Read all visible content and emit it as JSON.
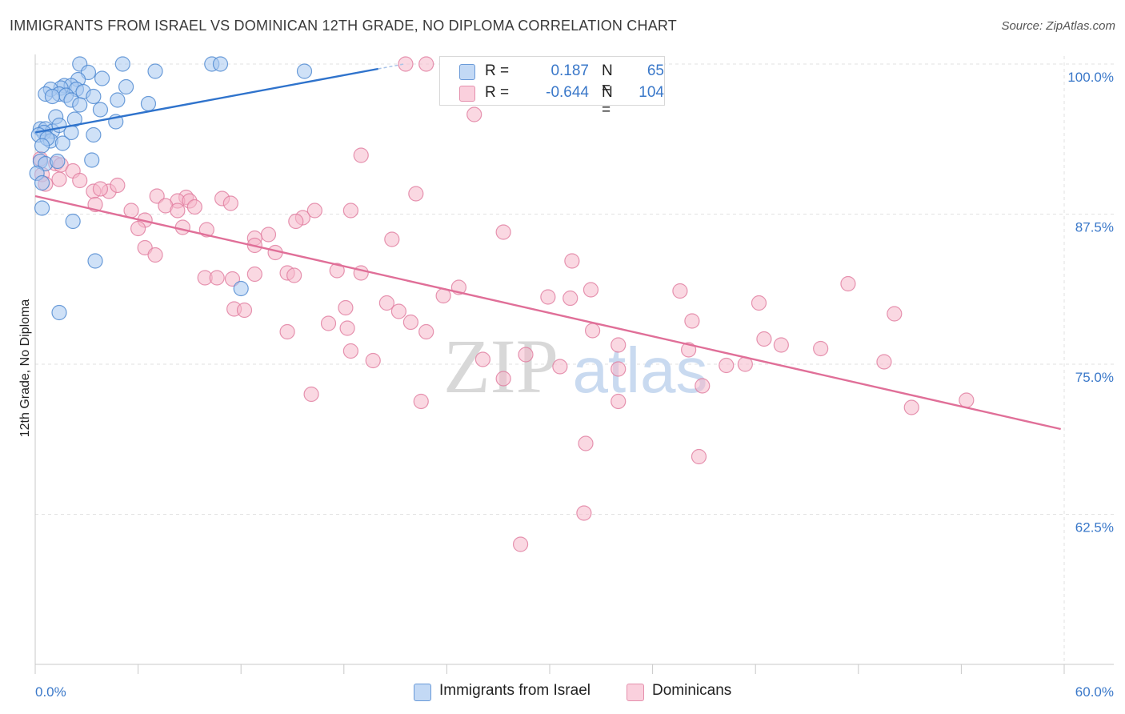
{
  "title": "IMMIGRANTS FROM ISRAEL VS DOMINICAN 12TH GRADE, NO DIPLOMA CORRELATION CHART",
  "source": "Source: ZipAtlas.com",
  "watermark": {
    "zip": "ZIP",
    "atlas": "atlas"
  },
  "legend": {
    "rows": [
      {
        "r_label": "R =",
        "r_value": "0.187",
        "n_label": "N =",
        "n_value": "65",
        "color": "#a8c8f0"
      },
      {
        "r_label": "R =",
        "r_value": "-0.644",
        "n_label": "N =",
        "n_value": "104",
        "color": "#f6b8cb"
      }
    ]
  },
  "bottom_legend": [
    {
      "label": "Immigrants from Israel",
      "color": "#a8c8f0"
    },
    {
      "label": "Dominicans",
      "color": "#f6b8cb"
    }
  ],
  "chart_data": {
    "type": "scatter",
    "title": "IMMIGRANTS FROM ISRAEL VS DOMINICAN 12TH GRADE, NO DIPLOMA CORRELATION CHART",
    "xlabel": "",
    "ylabel": "12th Grade, No Diploma",
    "xlim": [
      0,
      60
    ],
    "ylim": [
      50,
      100
    ],
    "x_tick_labels": [
      "0.0%",
      "60.0%"
    ],
    "y_ticks": [
      62.5,
      75.0,
      87.5,
      100.0
    ],
    "y_tick_labels": [
      "62.5%",
      "75.0%",
      "87.5%",
      "100.0%"
    ],
    "grid": true,
    "legend_position": "top-center",
    "colors": {
      "israel_fill": "#a8c8f0",
      "israel_stroke": "#4a86d0",
      "israel_line": "#2f73cc",
      "dominican_fill": "#f6b8cb",
      "dominican_stroke": "#e07a9e",
      "dominican_line": "#e06f98",
      "tick_text": "#3a78c9",
      "grid": "#e2e2e2"
    },
    "series": [
      {
        "name": "Immigrants from Israel",
        "trend": {
          "x": [
            0.0,
            20.0
          ],
          "y": [
            94.3,
            99.6
          ]
        },
        "points": [
          [
            2.6,
            100.0
          ],
          [
            5.1,
            100.0
          ],
          [
            10.3,
            100.0
          ],
          [
            10.8,
            100.0
          ],
          [
            3.1,
            99.3
          ],
          [
            7.0,
            99.4
          ],
          [
            15.7,
            99.4
          ],
          [
            2.5,
            98.7
          ],
          [
            3.9,
            98.8
          ],
          [
            1.7,
            98.2
          ],
          [
            2.1,
            98.2
          ],
          [
            1.5,
            98.0
          ],
          [
            2.4,
            97.9
          ],
          [
            2.8,
            97.7
          ],
          [
            0.9,
            97.9
          ],
          [
            0.6,
            97.5
          ],
          [
            1.4,
            97.5
          ],
          [
            1.8,
            97.4
          ],
          [
            1.0,
            97.3
          ],
          [
            3.4,
            97.3
          ],
          [
            4.8,
            97.0
          ],
          [
            5.3,
            98.1
          ],
          [
            2.1,
            97.0
          ],
          [
            2.6,
            96.6
          ],
          [
            6.6,
            96.7
          ],
          [
            3.8,
            96.2
          ],
          [
            1.2,
            95.6
          ],
          [
            2.3,
            95.4
          ],
          [
            4.7,
            95.2
          ],
          [
            0.3,
            94.6
          ],
          [
            0.6,
            94.6
          ],
          [
            1.0,
            94.4
          ],
          [
            1.4,
            94.9
          ],
          [
            0.5,
            94.3
          ],
          [
            0.9,
            93.6
          ],
          [
            2.1,
            94.3
          ],
          [
            0.2,
            94.1
          ],
          [
            3.4,
            94.1
          ],
          [
            0.7,
            93.8
          ],
          [
            1.6,
            93.4
          ],
          [
            0.4,
            93.2
          ],
          [
            0.3,
            91.9
          ],
          [
            0.6,
            91.7
          ],
          [
            1.3,
            91.9
          ],
          [
            3.3,
            92.0
          ],
          [
            0.1,
            90.9
          ],
          [
            0.4,
            90.1
          ],
          [
            0.4,
            88.0
          ],
          [
            2.2,
            86.9
          ],
          [
            3.5,
            83.6
          ],
          [
            12.0,
            81.3
          ],
          [
            1.4,
            79.3
          ]
        ]
      },
      {
        "name": "Dominicans",
        "trend": {
          "x": [
            0.0,
            59.8
          ],
          "y": [
            89.0,
            69.6
          ]
        },
        "points": [
          [
            21.6,
            100.0
          ],
          [
            22.8,
            100.0
          ],
          [
            25.6,
            95.8
          ],
          [
            19.0,
            92.4
          ],
          [
            0.3,
            92.1
          ],
          [
            1.2,
            91.7
          ],
          [
            1.5,
            91.6
          ],
          [
            2.2,
            91.1
          ],
          [
            0.4,
            90.8
          ],
          [
            1.4,
            90.4
          ],
          [
            2.6,
            90.3
          ],
          [
            0.6,
            90.0
          ],
          [
            3.4,
            89.4
          ],
          [
            4.3,
            89.4
          ],
          [
            4.8,
            89.9
          ],
          [
            3.8,
            89.6
          ],
          [
            22.2,
            89.2
          ],
          [
            7.1,
            89.0
          ],
          [
            8.8,
            88.9
          ],
          [
            10.9,
            88.8
          ],
          [
            11.4,
            88.4
          ],
          [
            8.3,
            88.6
          ],
          [
            9.0,
            88.6
          ],
          [
            7.6,
            88.2
          ],
          [
            5.6,
            87.8
          ],
          [
            9.3,
            88.1
          ],
          [
            3.5,
            88.3
          ],
          [
            8.3,
            87.8
          ],
          [
            16.3,
            87.8
          ],
          [
            18.4,
            87.8
          ],
          [
            15.6,
            87.2
          ],
          [
            6.4,
            87.0
          ],
          [
            15.2,
            86.9
          ],
          [
            6.0,
            86.3
          ],
          [
            8.6,
            86.4
          ],
          [
            10.0,
            86.2
          ],
          [
            13.6,
            85.8
          ],
          [
            12.8,
            85.5
          ],
          [
            20.8,
            85.4
          ],
          [
            12.8,
            84.9
          ],
          [
            27.3,
            86.0
          ],
          [
            6.4,
            84.7
          ],
          [
            14.0,
            84.3
          ],
          [
            7.0,
            84.1
          ],
          [
            31.3,
            83.6
          ],
          [
            17.6,
            82.8
          ],
          [
            19.0,
            82.6
          ],
          [
            12.8,
            82.5
          ],
          [
            14.7,
            82.6
          ],
          [
            15.1,
            82.4
          ],
          [
            9.9,
            82.2
          ],
          [
            10.6,
            82.2
          ],
          [
            11.5,
            82.1
          ],
          [
            24.7,
            81.4
          ],
          [
            23.8,
            80.7
          ],
          [
            29.9,
            80.6
          ],
          [
            31.2,
            80.5
          ],
          [
            32.4,
            81.2
          ],
          [
            37.6,
            81.1
          ],
          [
            47.4,
            81.7
          ],
          [
            50.1,
            79.2
          ],
          [
            42.2,
            80.1
          ],
          [
            38.3,
            78.6
          ],
          [
            11.6,
            79.6
          ],
          [
            12.2,
            79.5
          ],
          [
            20.5,
            80.1
          ],
          [
            18.1,
            79.7
          ],
          [
            21.2,
            79.4
          ],
          [
            21.9,
            78.5
          ],
          [
            17.1,
            78.4
          ],
          [
            18.2,
            78.0
          ],
          [
            14.7,
            77.7
          ],
          [
            22.8,
            77.7
          ],
          [
            32.5,
            77.8
          ],
          [
            34.0,
            76.6
          ],
          [
            38.1,
            76.2
          ],
          [
            42.5,
            77.1
          ],
          [
            43.5,
            76.6
          ],
          [
            45.8,
            76.3
          ],
          [
            18.4,
            76.1
          ],
          [
            19.7,
            75.3
          ],
          [
            26.1,
            75.4
          ],
          [
            28.6,
            75.8
          ],
          [
            30.6,
            74.8
          ],
          [
            34.0,
            74.6
          ],
          [
            40.3,
            74.9
          ],
          [
            41.4,
            75.0
          ],
          [
            49.5,
            75.2
          ],
          [
            16.1,
            72.5
          ],
          [
            22.5,
            71.9
          ],
          [
            27.3,
            73.8
          ],
          [
            34.0,
            71.9
          ],
          [
            38.9,
            73.2
          ],
          [
            54.3,
            72.0
          ],
          [
            51.1,
            71.4
          ],
          [
            32.1,
            68.4
          ],
          [
            38.7,
            67.3
          ],
          [
            32.0,
            62.6
          ],
          [
            28.3,
            60.0
          ]
        ]
      }
    ]
  }
}
